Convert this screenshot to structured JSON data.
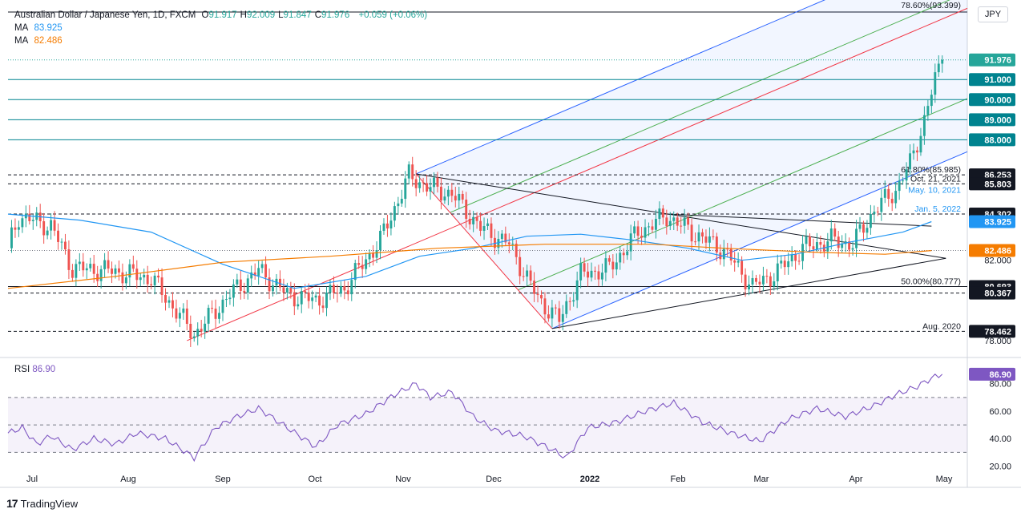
{
  "header": {
    "title": "Australian Dollar / Japanese Yen, 1D, FXCM",
    "ohlc": [
      {
        "k": "O",
        "v": "91.917"
      },
      {
        "k": "H",
        "v": "92.009"
      },
      {
        "k": "L",
        "v": "91.847"
      },
      {
        "k": "C",
        "v": "91.976"
      }
    ],
    "change": "+0.059 (+0.06%)",
    "ma1_label": "MA",
    "ma1_value": "83.925",
    "ma2_label": "MA",
    "ma2_value": "82.486",
    "symbol_button": "JPY"
  },
  "rsi": {
    "label": "RSI",
    "value": "86.90"
  },
  "brand": {
    "name": "TradingView"
  },
  "colors": {
    "up": "#26a69a",
    "down": "#ef5350",
    "ma1": "#2196f3",
    "ma2": "#f57c00",
    "rsi": "#7e57c2",
    "hline": "#00838f",
    "pitch_blue": "#2962ff",
    "pitch_green": "#4caf50",
    "pitch_red": "#f23645",
    "last": "#26a69a"
  },
  "chart_data": [
    {
      "type": "candlestick",
      "title": "Australian Dollar / Japanese Yen, 1D, FXCM",
      "ylim": [
        77.4,
        94.4
      ],
      "x_ticks": [
        "Jul",
        "Aug",
        "Sep",
        "Oct",
        "Nov",
        "Dec",
        "2022",
        "Feb",
        "Mar",
        "Apr",
        "May"
      ],
      "y_ticks": [
        "78.000",
        "82.000"
      ],
      "price_path": [
        {
          "i": 0,
          "v": 82.6
        },
        {
          "i": 3,
          "v": 84.2
        },
        {
          "i": 12,
          "v": 83.7
        },
        {
          "i": 18,
          "v": 81.6
        },
        {
          "i": 28,
          "v": 81.5
        },
        {
          "i": 40,
          "v": 81.1
        },
        {
          "i": 52,
          "v": 78.3
        },
        {
          "i": 62,
          "v": 80.3
        },
        {
          "i": 70,
          "v": 81.5
        },
        {
          "i": 78,
          "v": 80.3
        },
        {
          "i": 86,
          "v": 80.0
        },
        {
          "i": 94,
          "v": 80.6
        },
        {
          "i": 104,
          "v": 83.0
        },
        {
          "i": 112,
          "v": 86.2
        },
        {
          "i": 118,
          "v": 85.6
        },
        {
          "i": 124,
          "v": 85.3
        },
        {
          "i": 132,
          "v": 83.6
        },
        {
          "i": 140,
          "v": 82.8
        },
        {
          "i": 148,
          "v": 80.1
        },
        {
          "i": 154,
          "v": 79.0
        },
        {
          "i": 160,
          "v": 81.3
        },
        {
          "i": 168,
          "v": 81.6
        },
        {
          "i": 176,
          "v": 83.4
        },
        {
          "i": 184,
          "v": 84.2
        },
        {
          "i": 192,
          "v": 83.3
        },
        {
          "i": 200,
          "v": 82.5
        },
        {
          "i": 208,
          "v": 80.7
        },
        {
          "i": 214,
          "v": 81.3
        },
        {
          "i": 222,
          "v": 82.6
        },
        {
          "i": 230,
          "v": 83.0
        },
        {
          "i": 236,
          "v": 82.8
        },
        {
          "i": 242,
          "v": 84.5
        },
        {
          "i": 248,
          "v": 85.5
        },
        {
          "i": 252,
          "v": 86.8
        },
        {
          "i": 256,
          "v": 89.0
        },
        {
          "i": 259,
          "v": 91.0
        },
        {
          "i": 261,
          "v": 91.976
        }
      ],
      "ma1_path": [
        {
          "i": 0,
          "v": 84.3
        },
        {
          "i": 20,
          "v": 84.0
        },
        {
          "i": 40,
          "v": 83.4
        },
        {
          "i": 60,
          "v": 81.8
        },
        {
          "i": 80,
          "v": 80.6
        },
        {
          "i": 100,
          "v": 81.2
        },
        {
          "i": 115,
          "v": 82.2
        },
        {
          "i": 130,
          "v": 82.6
        },
        {
          "i": 145,
          "v": 83.2
        },
        {
          "i": 160,
          "v": 83.3
        },
        {
          "i": 175,
          "v": 83.0
        },
        {
          "i": 190,
          "v": 82.6
        },
        {
          "i": 205,
          "v": 82.0
        },
        {
          "i": 220,
          "v": 82.3
        },
        {
          "i": 235,
          "v": 82.9
        },
        {
          "i": 250,
          "v": 83.4
        },
        {
          "i": 258,
          "v": 83.925
        }
      ],
      "ma2_path": [
        {
          "i": 0,
          "v": 80.6
        },
        {
          "i": 30,
          "v": 81.2
        },
        {
          "i": 60,
          "v": 81.9
        },
        {
          "i": 90,
          "v": 82.2
        },
        {
          "i": 120,
          "v": 82.6
        },
        {
          "i": 150,
          "v": 82.8
        },
        {
          "i": 180,
          "v": 82.8
        },
        {
          "i": 200,
          "v": 82.6
        },
        {
          "i": 225,
          "v": 82.4
        },
        {
          "i": 245,
          "v": 82.3
        },
        {
          "i": 258,
          "v": 82.486
        }
      ],
      "levels": [
        {
          "value": 91.0,
          "label": "91.000",
          "style": "teal"
        },
        {
          "value": 90.0,
          "label": "90.000",
          "style": "teal"
        },
        {
          "value": 89.0,
          "label": "89.000",
          "style": "teal"
        },
        {
          "value": 88.0,
          "label": "88.000",
          "style": "teal"
        },
        {
          "value": 86.253,
          "label": "86.253",
          "style": "dashed",
          "note": "61.80%(85.985)"
        },
        {
          "value": 85.803,
          "label": "85.803",
          "style": "dashed",
          "note": "Oct. 21, 2021",
          "note2": "May. 10, 2021"
        },
        {
          "value": 84.302,
          "label": "84.302",
          "style": "dashed",
          "note": "Jan. 5, 2022"
        },
        {
          "value": 80.693,
          "label": "80.693",
          "style": "solid",
          "note": "50.00%(80.777)"
        },
        {
          "value": 80.367,
          "label": "80.367",
          "style": "dashed"
        },
        {
          "value": 78.462,
          "label": "78.462",
          "style": "dashed",
          "note": "Aug. 2020"
        }
      ],
      "fib_top_note": "78.60%(93.399)",
      "last": {
        "value": 91.976,
        "label": "91.976"
      },
      "ma1_tag": {
        "value": 83.925,
        "label": "83.925"
      },
      "ma2_tag": {
        "value": 82.486,
        "label": "82.486"
      }
    },
    {
      "type": "line",
      "title": "RSI",
      "ylim": [
        15,
        95
      ],
      "y_ticks": [
        "80.00",
        "60.00",
        "40.00",
        "20.00"
      ],
      "bands": [
        70,
        50,
        30
      ],
      "series": [
        {
          "name": "RSI",
          "points": [
            {
              "i": 0,
              "v": 44
            },
            {
              "i": 4,
              "v": 48
            },
            {
              "i": 8,
              "v": 36
            },
            {
              "i": 12,
              "v": 42
            },
            {
              "i": 18,
              "v": 32
            },
            {
              "i": 24,
              "v": 40
            },
            {
              "i": 30,
              "v": 36
            },
            {
              "i": 36,
              "v": 44
            },
            {
              "i": 44,
              "v": 40
            },
            {
              "i": 52,
              "v": 26
            },
            {
              "i": 58,
              "v": 48
            },
            {
              "i": 64,
              "v": 56
            },
            {
              "i": 70,
              "v": 62
            },
            {
              "i": 78,
              "v": 48
            },
            {
              "i": 86,
              "v": 34
            },
            {
              "i": 92,
              "v": 50
            },
            {
              "i": 100,
              "v": 58
            },
            {
              "i": 108,
              "v": 72
            },
            {
              "i": 114,
              "v": 80
            },
            {
              "i": 118,
              "v": 70
            },
            {
              "i": 124,
              "v": 74
            },
            {
              "i": 130,
              "v": 56
            },
            {
              "i": 136,
              "v": 46
            },
            {
              "i": 144,
              "v": 42
            },
            {
              "i": 152,
              "v": 32
            },
            {
              "i": 156,
              "v": 26
            },
            {
              "i": 162,
              "v": 48
            },
            {
              "i": 170,
              "v": 52
            },
            {
              "i": 178,
              "v": 60
            },
            {
              "i": 186,
              "v": 66
            },
            {
              "i": 194,
              "v": 52
            },
            {
              "i": 202,
              "v": 44
            },
            {
              "i": 210,
              "v": 38
            },
            {
              "i": 218,
              "v": 54
            },
            {
              "i": 226,
              "v": 62
            },
            {
              "i": 234,
              "v": 56
            },
            {
              "i": 242,
              "v": 64
            },
            {
              "i": 248,
              "v": 72
            },
            {
              "i": 254,
              "v": 78
            },
            {
              "i": 258,
              "v": 84
            },
            {
              "i": 261,
              "v": 86.9
            }
          ]
        }
      ],
      "last": {
        "value": 86.9,
        "label": "86.90"
      }
    }
  ]
}
